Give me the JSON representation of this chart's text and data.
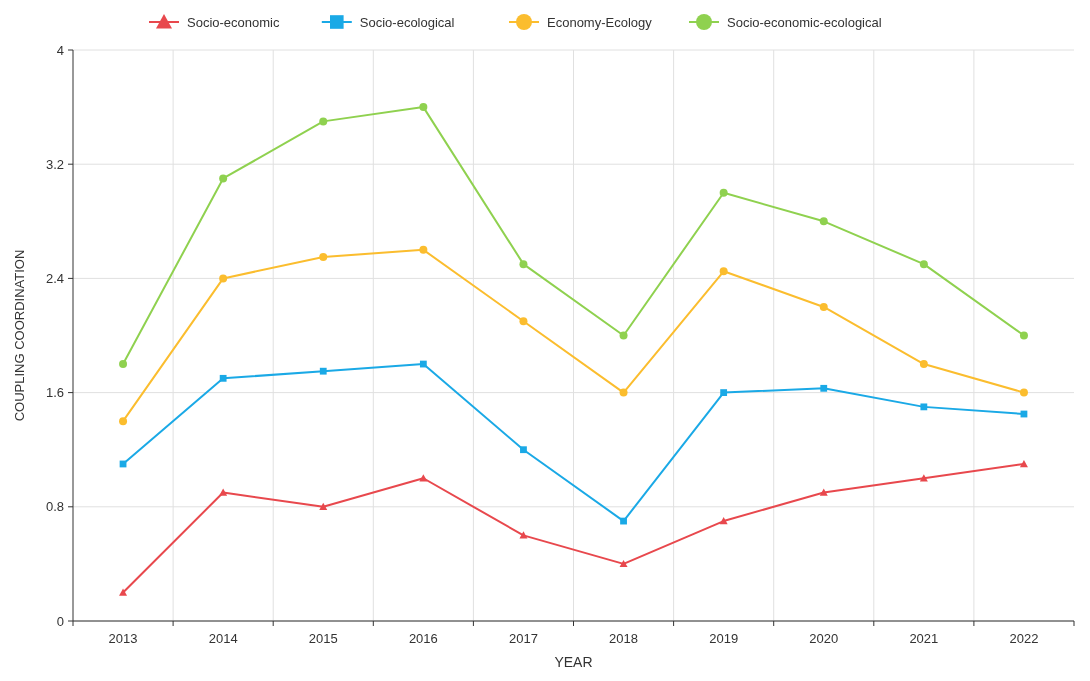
{
  "chart_data": {
    "type": "line",
    "xlabel": "YEAR",
    "ylabel": "COUPLING COORDINATION",
    "categories": [
      "2013",
      "2014",
      "2015",
      "2016",
      "2017",
      "2018",
      "2019",
      "2020",
      "2021",
      "2022"
    ],
    "series": [
      {
        "name": "Socio-economic",
        "color": "#e8484d",
        "marker": "triangle",
        "values": [
          0.2,
          0.9,
          0.8,
          1.0,
          0.6,
          0.4,
          0.7,
          0.9,
          1.0,
          1.1
        ]
      },
      {
        "name": "Socio-ecological",
        "color": "#1aa9e6",
        "marker": "square",
        "values": [
          1.1,
          1.7,
          1.75,
          1.8,
          1.2,
          0.7,
          1.6,
          1.63,
          1.5,
          1.45
        ]
      },
      {
        "name": "Economy-Ecology",
        "color": "#fbbd2e",
        "marker": "circle",
        "values": [
          1.4,
          2.4,
          2.55,
          2.6,
          2.1,
          1.6,
          2.45,
          2.2,
          1.8,
          1.6
        ]
      },
      {
        "name": "Socio-economic-ecological",
        "color": "#8fd14f",
        "marker": "circle",
        "values": [
          1.8,
          3.1,
          3.5,
          3.6,
          2.5,
          2.0,
          3.0,
          2.8,
          2.5,
          2.0
        ]
      }
    ],
    "ylim": [
      0,
      4
    ],
    "yticks": [
      0,
      0.8,
      1.6,
      2.4,
      3.2,
      4
    ],
    "grid": true,
    "legend": "top"
  }
}
